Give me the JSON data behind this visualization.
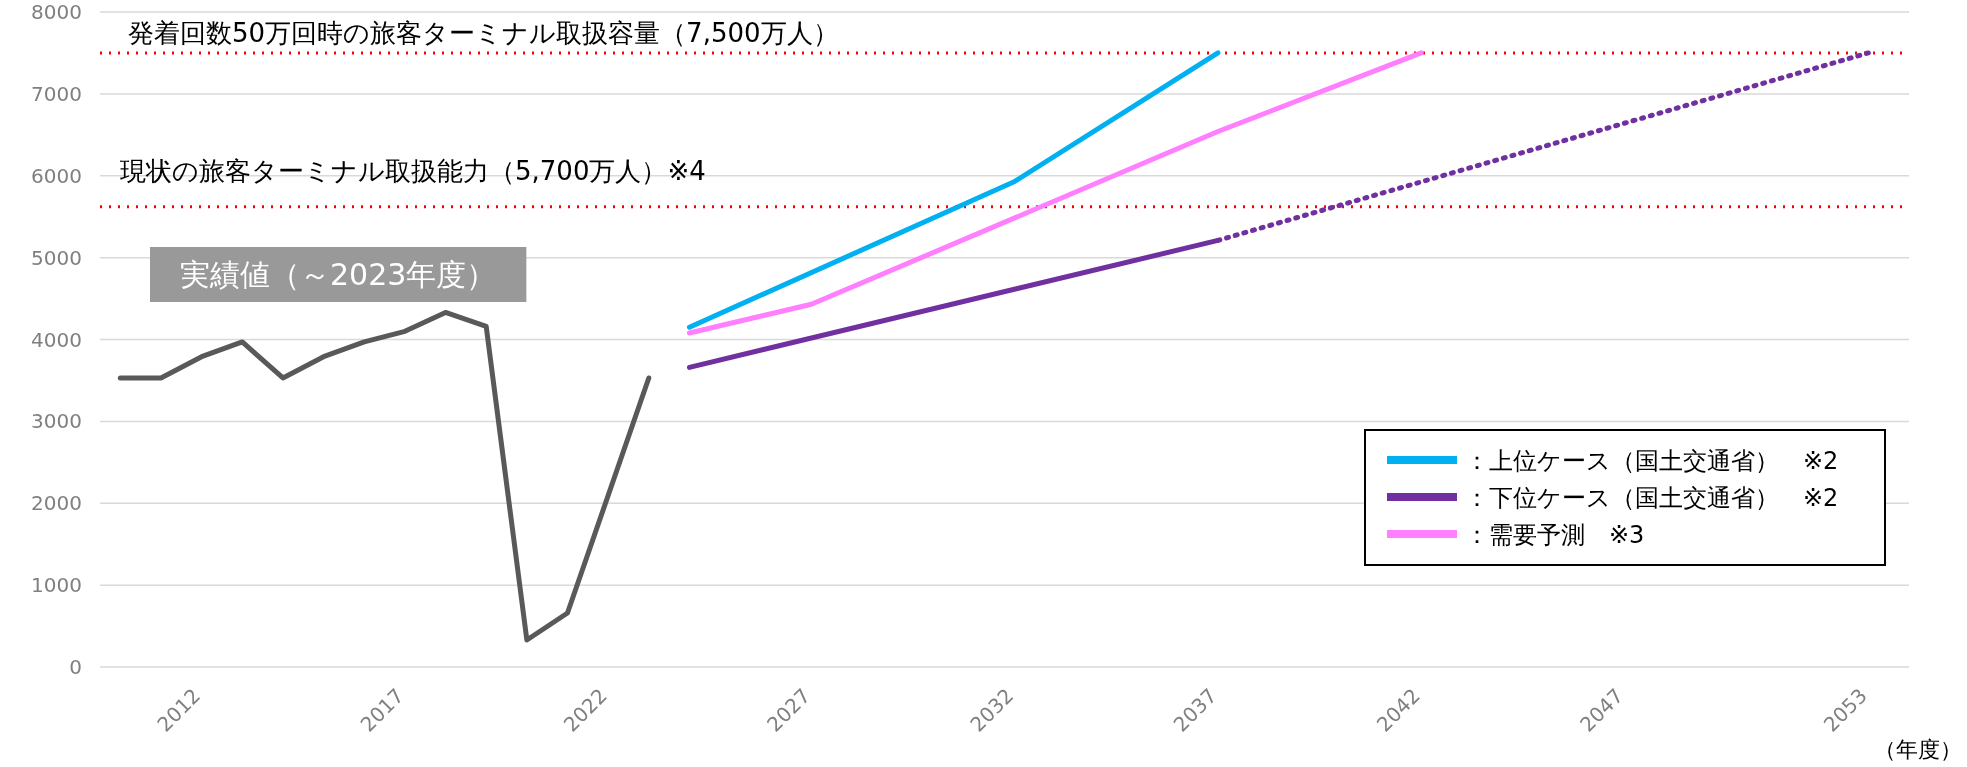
{
  "chart_data": {
    "type": "line",
    "xlabel": "（年度）",
    "xlim": [
      2009.5,
      2054
    ],
    "xticks": [
      2012,
      2017,
      2022,
      2027,
      2032,
      2037,
      2042,
      2047,
      2053
    ],
    "ylim": [
      0,
      8000
    ],
    "yticks": [
      0,
      1000,
      2000,
      3000,
      4000,
      5000,
      6000,
      7000,
      8000
    ],
    "grid": "y",
    "legend": "bottom right",
    "series": [
      {
        "color": "#595959",
        "line_style": "solid",
        "x": [
          2010,
          2011,
          2012,
          2013,
          2014,
          2015,
          2016,
          2017,
          2018,
          2019,
          2020,
          2021,
          2023
        ],
        "values": [
          3530,
          3530,
          3790,
          3970,
          3530,
          3790,
          3970,
          4100,
          4330,
          4160,
          330,
          660,
          3530
        ]
      },
      {
        "name": "：上位ケース（国土交通省）　※2",
        "color": "#00b0f0",
        "line_style": "solid",
        "x": [
          2024,
          2032,
          2037
        ],
        "values": [
          4150,
          5930,
          7500
        ]
      },
      {
        "name": "：下位ケース（国土交通省）　※2",
        "color": "#7030a0",
        "line_style": "solid",
        "x": [
          2024,
          2037
        ],
        "values": [
          3660,
          5210
        ]
      },
      {
        "color": "#7030a0",
        "line_style": "dotted",
        "x": [
          2037,
          2053
        ],
        "values": [
          5210,
          7500
        ]
      },
      {
        "name": "：需要予測　※3",
        "color": "#ff7fff",
        "line_style": "solid",
        "x": [
          2024,
          2027,
          2037,
          2042
        ],
        "values": [
          4080,
          4430,
          6540,
          7500
        ]
      }
    ],
    "ref_lines": [
      {
        "axis": "y",
        "value": 7500,
        "color": "#ff0000",
        "line_style": "dotted"
      },
      {
        "axis": "y",
        "value": 5620,
        "color": "#ff0000",
        "line_style": "dotted"
      }
    ],
    "annotations": [
      "発着回数50万回時の旅客ターミナル取扱容量（7,500万人）",
      "現状の旅客ターミナル取扱能力（5,700万人）※4",
      "実績値（～2023年度）"
    ]
  }
}
